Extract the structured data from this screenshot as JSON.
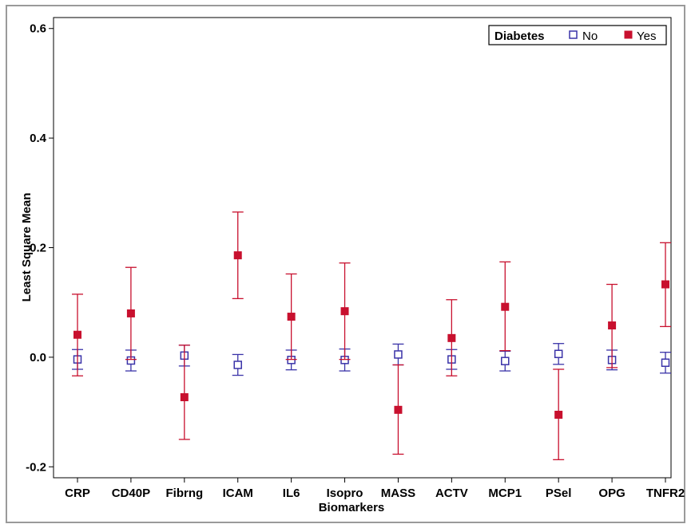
{
  "colors": {
    "no": "#3a33a8",
    "yes": "#c8102e",
    "frame": "#9a9a9a",
    "axis": "#000000"
  },
  "chart_data": {
    "type": "scatter",
    "title": "",
    "xlabel": "Biomarkers",
    "ylabel": "Least Square Mean",
    "ylim": [
      -0.22,
      0.62
    ],
    "yticks": [
      -0.2,
      0.0,
      0.2,
      0.4,
      0.6
    ],
    "ytick_labels": [
      "-0.2",
      "0.0",
      "0.2",
      "0.4",
      "0.6"
    ],
    "grid": false,
    "legend": {
      "title": "Diabetes",
      "position": "top-right",
      "entries": [
        "No",
        "Yes"
      ]
    },
    "categories": [
      "CRP",
      "CD40P",
      "Fibrng",
      "ICAM",
      "IL6",
      "Isopro",
      "MASS",
      "ACTV",
      "MCP1",
      "PSel",
      "OPG",
      "TNFR2"
    ],
    "series": [
      {
        "name": "No",
        "marker": "open-square",
        "values": [
          -0.004,
          -0.006,
          0.003,
          -0.014,
          -0.005,
          -0.005,
          0.005,
          -0.004,
          -0.007,
          0.006,
          -0.005,
          -0.01
        ],
        "lower": [
          -0.022,
          -0.025,
          -0.016,
          -0.033,
          -0.023,
          -0.025,
          -0.014,
          -0.022,
          -0.025,
          -0.013,
          -0.023,
          -0.029
        ],
        "upper": [
          0.014,
          0.013,
          0.022,
          0.005,
          0.013,
          0.015,
          0.024,
          0.014,
          0.011,
          0.025,
          0.013,
          0.009
        ]
      },
      {
        "name": "Yes",
        "marker": "filled-square",
        "values": [
          0.041,
          0.08,
          -0.073,
          0.186,
          0.074,
          0.084,
          -0.096,
          0.035,
          0.092,
          -0.105,
          0.058,
          0.133
        ],
        "lower": [
          -0.034,
          -0.004,
          -0.15,
          0.107,
          -0.004,
          -0.004,
          -0.177,
          -0.034,
          0.012,
          -0.187,
          -0.019,
          0.056
        ],
        "upper": [
          0.115,
          0.164,
          0.022,
          0.265,
          0.152,
          0.172,
          -0.014,
          0.105,
          0.174,
          -0.022,
          0.133,
          0.209
        ]
      }
    ]
  }
}
